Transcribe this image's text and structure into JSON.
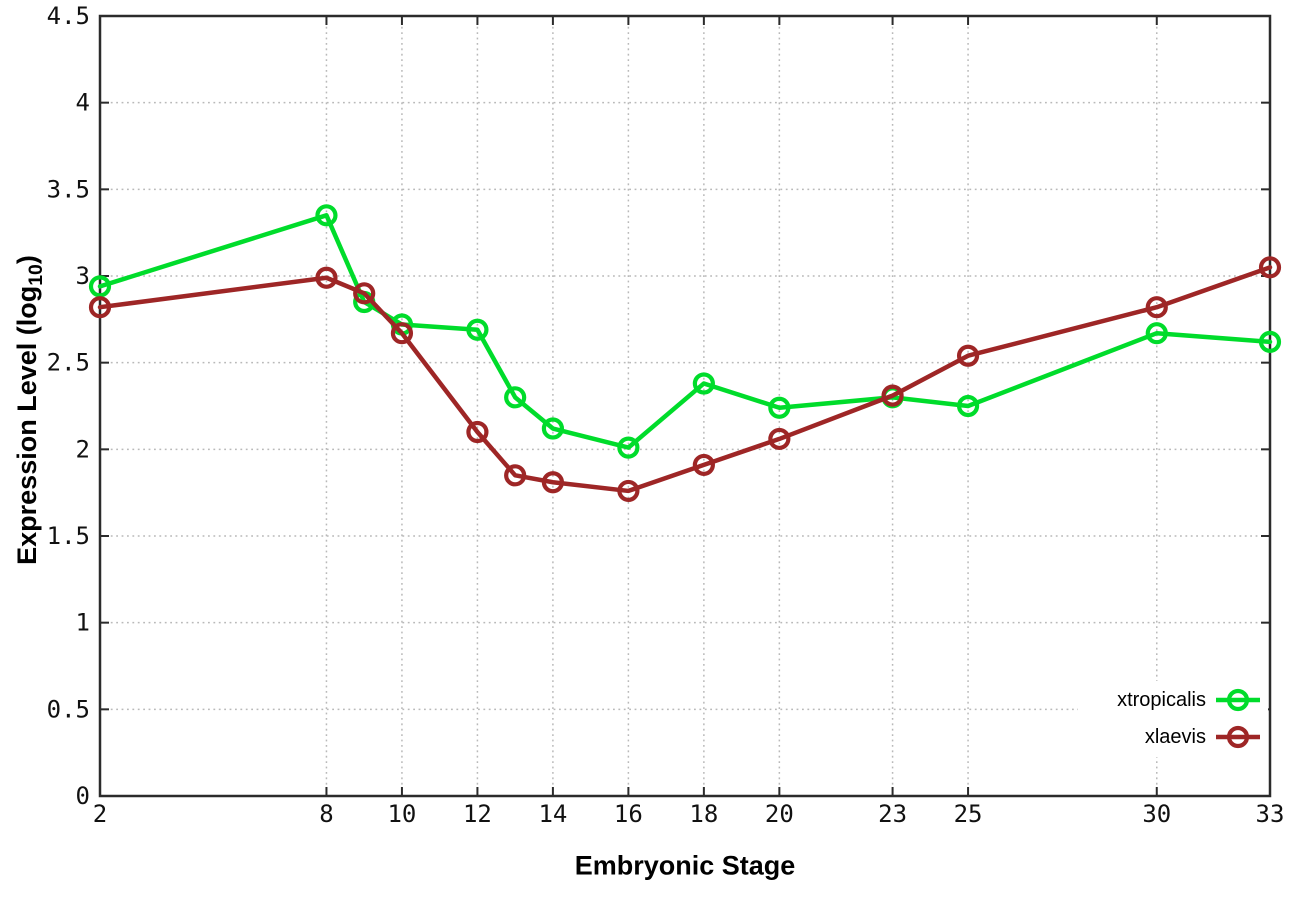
{
  "page": {
    "background": "#ffffff"
  },
  "chart_data": {
    "type": "line",
    "title": "",
    "xlabel": "Embryonic Stage",
    "ylabel": "Expression Level (log10)",
    "ylabel_prefix": "Expression Level (log",
    "ylabel_subscript": "10",
    "ylabel_suffix": ")",
    "xlim": [
      2,
      33
    ],
    "ylim": [
      0,
      4.5
    ],
    "grid": "dotted",
    "legend_position": "inside-bottom-right",
    "x_ticks": [
      {
        "v": 2,
        "label": "2"
      },
      {
        "v": 8,
        "label": "8"
      },
      {
        "v": 10,
        "label": "10"
      },
      {
        "v": 12,
        "label": "12"
      },
      {
        "v": 14,
        "label": "14"
      },
      {
        "v": 16,
        "label": "16"
      },
      {
        "v": 18,
        "label": "18"
      },
      {
        "v": 20,
        "label": "20"
      },
      {
        "v": 23,
        "label": "23"
      },
      {
        "v": 25,
        "label": "25"
      },
      {
        "v": 30,
        "label": "30"
      },
      {
        "v": 33,
        "label": "33"
      }
    ],
    "y_ticks": [
      {
        "v": 0,
        "label": "0"
      },
      {
        "v": 0.5,
        "label": "0.5"
      },
      {
        "v": 1,
        "label": "1"
      },
      {
        "v": 1.5,
        "label": "1.5"
      },
      {
        "v": 2,
        "label": "2"
      },
      {
        "v": 2.5,
        "label": "2.5"
      },
      {
        "v": 3,
        "label": "3"
      },
      {
        "v": 3.5,
        "label": "3.5"
      },
      {
        "v": 4,
        "label": "4"
      },
      {
        "v": 4.5,
        "label": "4.5"
      }
    ],
    "x": [
      2,
      8,
      9,
      10,
      12,
      13,
      14,
      16,
      18,
      20,
      23,
      25,
      30,
      33
    ],
    "series": [
      {
        "name": "xtropicalis",
        "color": "#00dc2b",
        "marker": "open-circle",
        "values": [
          2.94,
          3.35,
          2.85,
          2.72,
          2.69,
          2.3,
          2.12,
          2.01,
          2.38,
          2.24,
          2.3,
          2.25,
          2.67,
          2.62
        ]
      },
      {
        "name": "xlaevis",
        "color": "#9e2626",
        "marker": "open-circle",
        "values": [
          2.82,
          2.99,
          2.9,
          2.67,
          2.1,
          1.85,
          1.81,
          1.76,
          1.91,
          2.06,
          2.31,
          2.54,
          2.82,
          3.05
        ]
      }
    ],
    "colors": {
      "axis": "#2b2b2b",
      "grid": "#b9b9b9",
      "tick_label": "#111111",
      "legend_text": "#000000"
    }
  }
}
